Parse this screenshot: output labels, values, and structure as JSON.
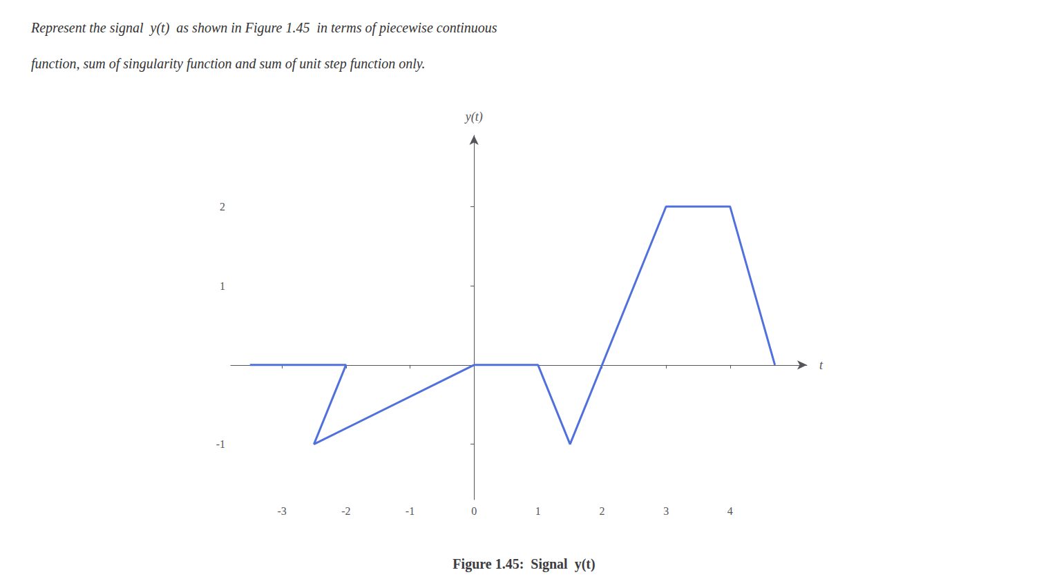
{
  "chart_data": {
    "type": "line",
    "title": "Figure 1.45:  Signal  y(t)",
    "annotations": [
      "Represent the signal  y(t)  as shown in Figure 1.45  in terms of piecewise continuous",
      "function, sum of singularity function and sum of unit step function only."
    ],
    "xlabel": "t",
    "ylabel": "y(t)",
    "x": [
      -3.5,
      -2.0,
      -2.5,
      0.0,
      1.0,
      1.5,
      3.0,
      4.0,
      4.7
    ],
    "values": [
      0.0,
      0.0,
      -1.0,
      0.0,
      0.0,
      -1.0,
      2.0,
      2.0,
      0.0
    ],
    "xlim": [
      -3.8,
      5.2
    ],
    "ylim": [
      -1.7,
      2.9
    ],
    "xticks": [
      -3,
      -2,
      -1,
      0,
      1,
      2,
      3,
      4
    ],
    "yticks": [
      -1,
      1,
      2
    ],
    "grid": false
  }
}
